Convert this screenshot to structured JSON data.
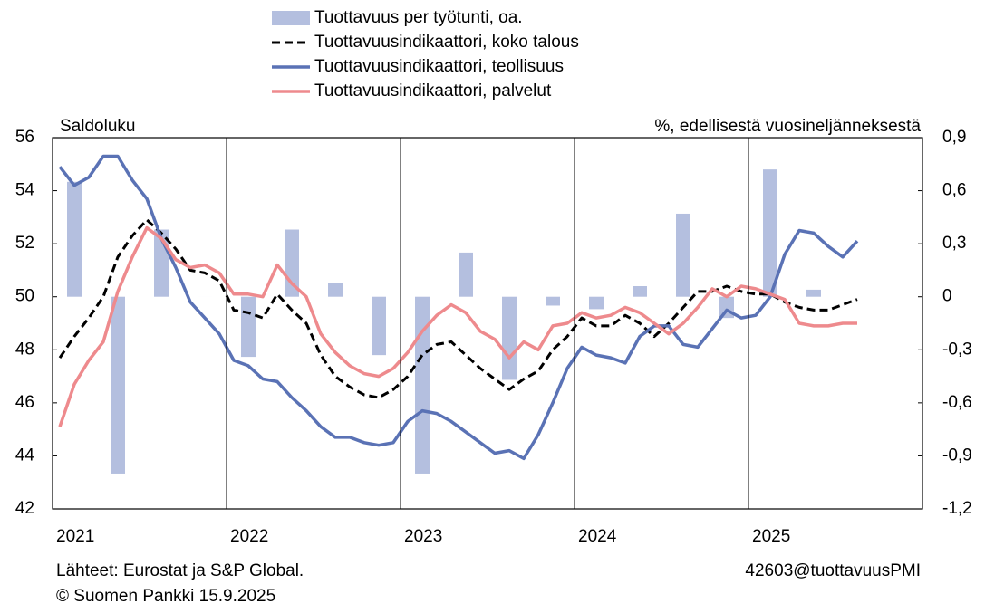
{
  "chart_data": {
    "type": "bar-line",
    "left_axis_label": "Saldoluku",
    "right_axis_label": "%, edellisestä vuosineljänneksestä",
    "source": "Lähteet: Eurostat ja S&P Global.",
    "copyright": "© Suomen Pankki 15.9.2025",
    "code": "42603@tuottavuusPMI",
    "categories": [
      "2021",
      null,
      null,
      null,
      null,
      null,
      null,
      null,
      null,
      null,
      null,
      null,
      "2022",
      null,
      null,
      null,
      null,
      null,
      null,
      null,
      null,
      null,
      null,
      null,
      "2023",
      null,
      null,
      null,
      null,
      null,
      null,
      null,
      null,
      null,
      null,
      null,
      "2024",
      null,
      null,
      null,
      null,
      null,
      null,
      null,
      null,
      null,
      null,
      null,
      "2025",
      null,
      null,
      null,
      null,
      null,
      null,
      null
    ],
    "ylim": [
      42,
      56
    ],
    "yticks": [
      42,
      44,
      46,
      48,
      50,
      52,
      54,
      56
    ],
    "y2lim": [
      -1.2,
      0.9
    ],
    "y2ticks": [
      {
        "value": -1.2,
        "label": "-1,2"
      },
      {
        "value": -0.9,
        "label": "-0,9"
      },
      {
        "value": -0.6,
        "label": "-0,6"
      },
      {
        "value": -0.3,
        "label": "-0,3"
      },
      0,
      {
        "value": 0.3,
        "label": "0,3"
      },
      {
        "value": 0.6,
        "label": "0,6"
      },
      {
        "value": 0.9,
        "label": "0,9"
      }
    ],
    "series": [
      {
        "name": "Tuottavuus per työtunti, oa.",
        "type": "bar",
        "axis": "y2",
        "color": "#b4bfdf",
        "values": [
          null,
          0.65,
          null,
          null,
          -1.0,
          null,
          null,
          0.38,
          null,
          null,
          0,
          null,
          null,
          -0.34,
          null,
          null,
          0.38,
          null,
          null,
          0.08,
          null,
          null,
          -0.33,
          null,
          null,
          -1.0,
          null,
          null,
          0.25,
          null,
          null,
          -0.47,
          null,
          null,
          -0.05,
          null,
          null,
          -0.07,
          null,
          null,
          0.06,
          null,
          null,
          0.47,
          null,
          null,
          -0.12,
          null,
          null,
          0.72,
          null,
          null,
          0.04,
          null,
          null,
          null
        ]
      },
      {
        "name": "Tuottavuusindikaattori, koko talous",
        "type": "line",
        "dash": true,
        "color": "#000000",
        "values": [
          47.7,
          48.5,
          49.2,
          50.0,
          51.5,
          52.3,
          52.9,
          52.4,
          51.8,
          51.0,
          50.9,
          50.6,
          49.5,
          49.4,
          49.2,
          50.1,
          49.5,
          49.0,
          47.8,
          47.0,
          46.6,
          46.3,
          46.2,
          46.5,
          47.0,
          47.8,
          48.2,
          48.3,
          47.8,
          47.3,
          46.9,
          46.5,
          46.9,
          47.2,
          48.0,
          48.5,
          49.2,
          48.9,
          48.9,
          49.3,
          49.0,
          48.5,
          49.0,
          49.6,
          50.2,
          50.2,
          50.4,
          50.2,
          50.1,
          50.1,
          49.8,
          49.6,
          49.5,
          49.5,
          49.7,
          49.9
        ]
      },
      {
        "name": "Tuottavuusindikaattori, teollisuus",
        "type": "line",
        "color": "#5a72b5",
        "values": [
          54.9,
          54.2,
          54.5,
          55.3,
          55.3,
          54.4,
          53.7,
          52.2,
          51.1,
          49.8,
          49.2,
          48.6,
          47.6,
          47.4,
          46.9,
          46.8,
          46.2,
          45.7,
          45.1,
          44.7,
          44.7,
          44.5,
          44.4,
          44.5,
          45.3,
          45.7,
          45.6,
          45.3,
          44.9,
          44.5,
          44.1,
          44.2,
          43.9,
          44.8,
          46.0,
          47.3,
          48.1,
          47.8,
          47.7,
          47.5,
          48.5,
          48.9,
          48.9,
          48.2,
          48.1,
          48.8,
          49.5,
          49.2,
          49.3,
          50.0,
          51.6,
          52.5,
          52.4,
          51.9,
          51.5,
          52.1
        ]
      },
      {
        "name": "Tuottavuusindikaattori, palvelut",
        "type": "line",
        "color": "#ee8a8d",
        "values": [
          45.1,
          46.7,
          47.6,
          48.3,
          50.2,
          51.5,
          52.6,
          52.2,
          51.4,
          51.1,
          51.2,
          50.9,
          50.1,
          50.1,
          50.0,
          51.2,
          50.5,
          50.0,
          48.6,
          47.9,
          47.4,
          47.1,
          47.0,
          47.3,
          47.9,
          48.7,
          49.3,
          49.7,
          49.4,
          48.7,
          48.4,
          47.7,
          48.3,
          48.0,
          48.9,
          49.0,
          49.4,
          49.2,
          49.3,
          49.6,
          49.4,
          49.0,
          48.6,
          49.0,
          49.6,
          50.3,
          50.0,
          50.4,
          50.3,
          50.1,
          49.9,
          49.0,
          48.9,
          48.9,
          49.0,
          49.0
        ]
      }
    ]
  }
}
